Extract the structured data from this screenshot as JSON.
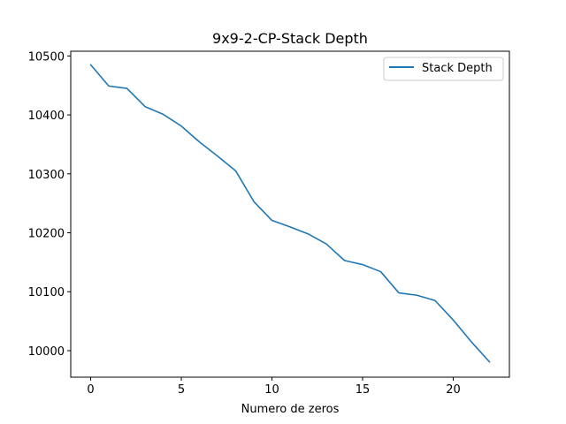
{
  "chart_data": {
    "type": "line",
    "title": "9x9-2-CP-Stack Depth",
    "xlabel": "Numero de zeros",
    "ylabel": "",
    "xlim": [
      -1.1,
      23.1
    ],
    "ylim": [
      9955,
      10508
    ],
    "xticks": [
      0,
      5,
      10,
      15,
      20
    ],
    "yticks": [
      10000,
      10100,
      10200,
      10300,
      10400,
      10500
    ],
    "grid": false,
    "legend_position": "top-right",
    "series": [
      {
        "name": "Stack Depth",
        "color": "#1f77b4",
        "x": [
          0,
          1,
          2,
          3,
          4,
          5,
          6,
          7,
          8,
          9,
          10,
          11,
          12,
          13,
          14,
          15,
          16,
          17,
          18,
          19,
          20,
          21,
          22
        ],
        "y": [
          10485,
          10449,
          10445,
          10414,
          10401,
          10381,
          10354,
          10330,
          10305,
          10253,
          10221,
          10210,
          10198,
          10181,
          10153,
          10146,
          10134,
          10098,
          10094,
          10085,
          10052,
          10015,
          9981
        ]
      }
    ]
  }
}
